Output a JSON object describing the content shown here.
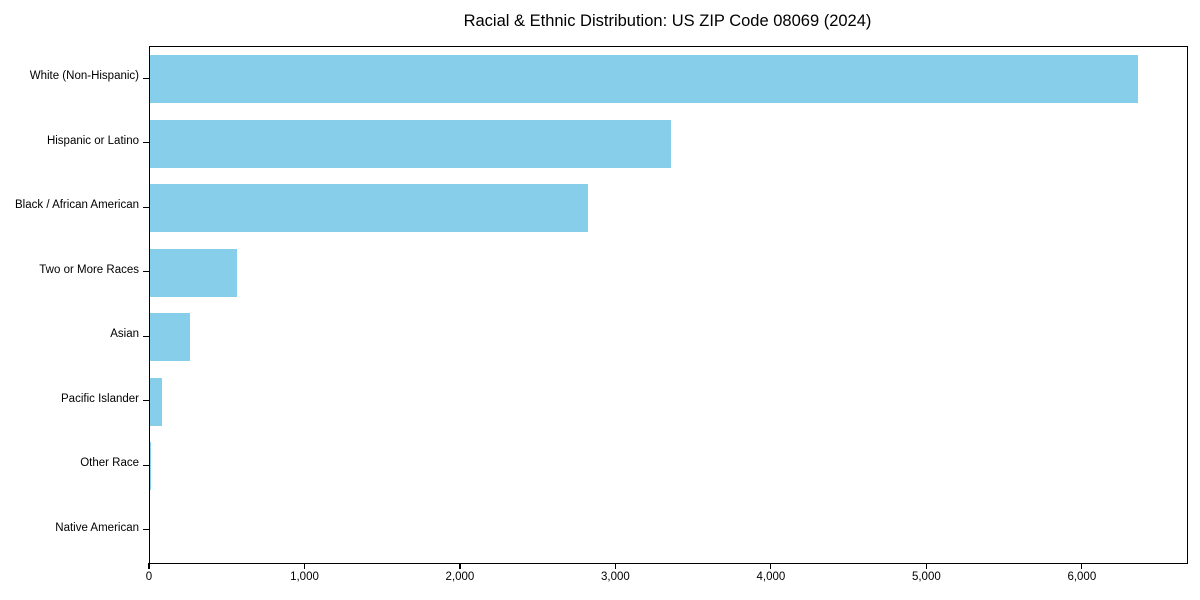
{
  "chart_data": {
    "type": "bar",
    "orientation": "horizontal",
    "title": "Racial & Ethnic Distribution: US ZIP Code 08069 (2024)",
    "categories": [
      "White (Non-Hispanic)",
      "Hispanic or Latino",
      "Black / African American",
      "Two or More Races",
      "Asian",
      "Pacific Islander",
      "Other Race",
      "Native American"
    ],
    "values": [
      6355,
      3348,
      2815,
      560,
      260,
      80,
      8,
      0
    ],
    "xlabel": "",
    "ylabel": "",
    "xlim": [
      0,
      6670
    ],
    "x_ticks": [
      0,
      1000,
      2000,
      3000,
      4000,
      5000,
      6000
    ],
    "x_tick_labels": [
      "0",
      "1,000",
      "2,000",
      "3,000",
      "4,000",
      "5,000",
      "6,000"
    ],
    "bar_color": "#87CEEB",
    "axis_color": "#000000",
    "background_color": "#ffffff",
    "grid": false,
    "legend": null
  }
}
